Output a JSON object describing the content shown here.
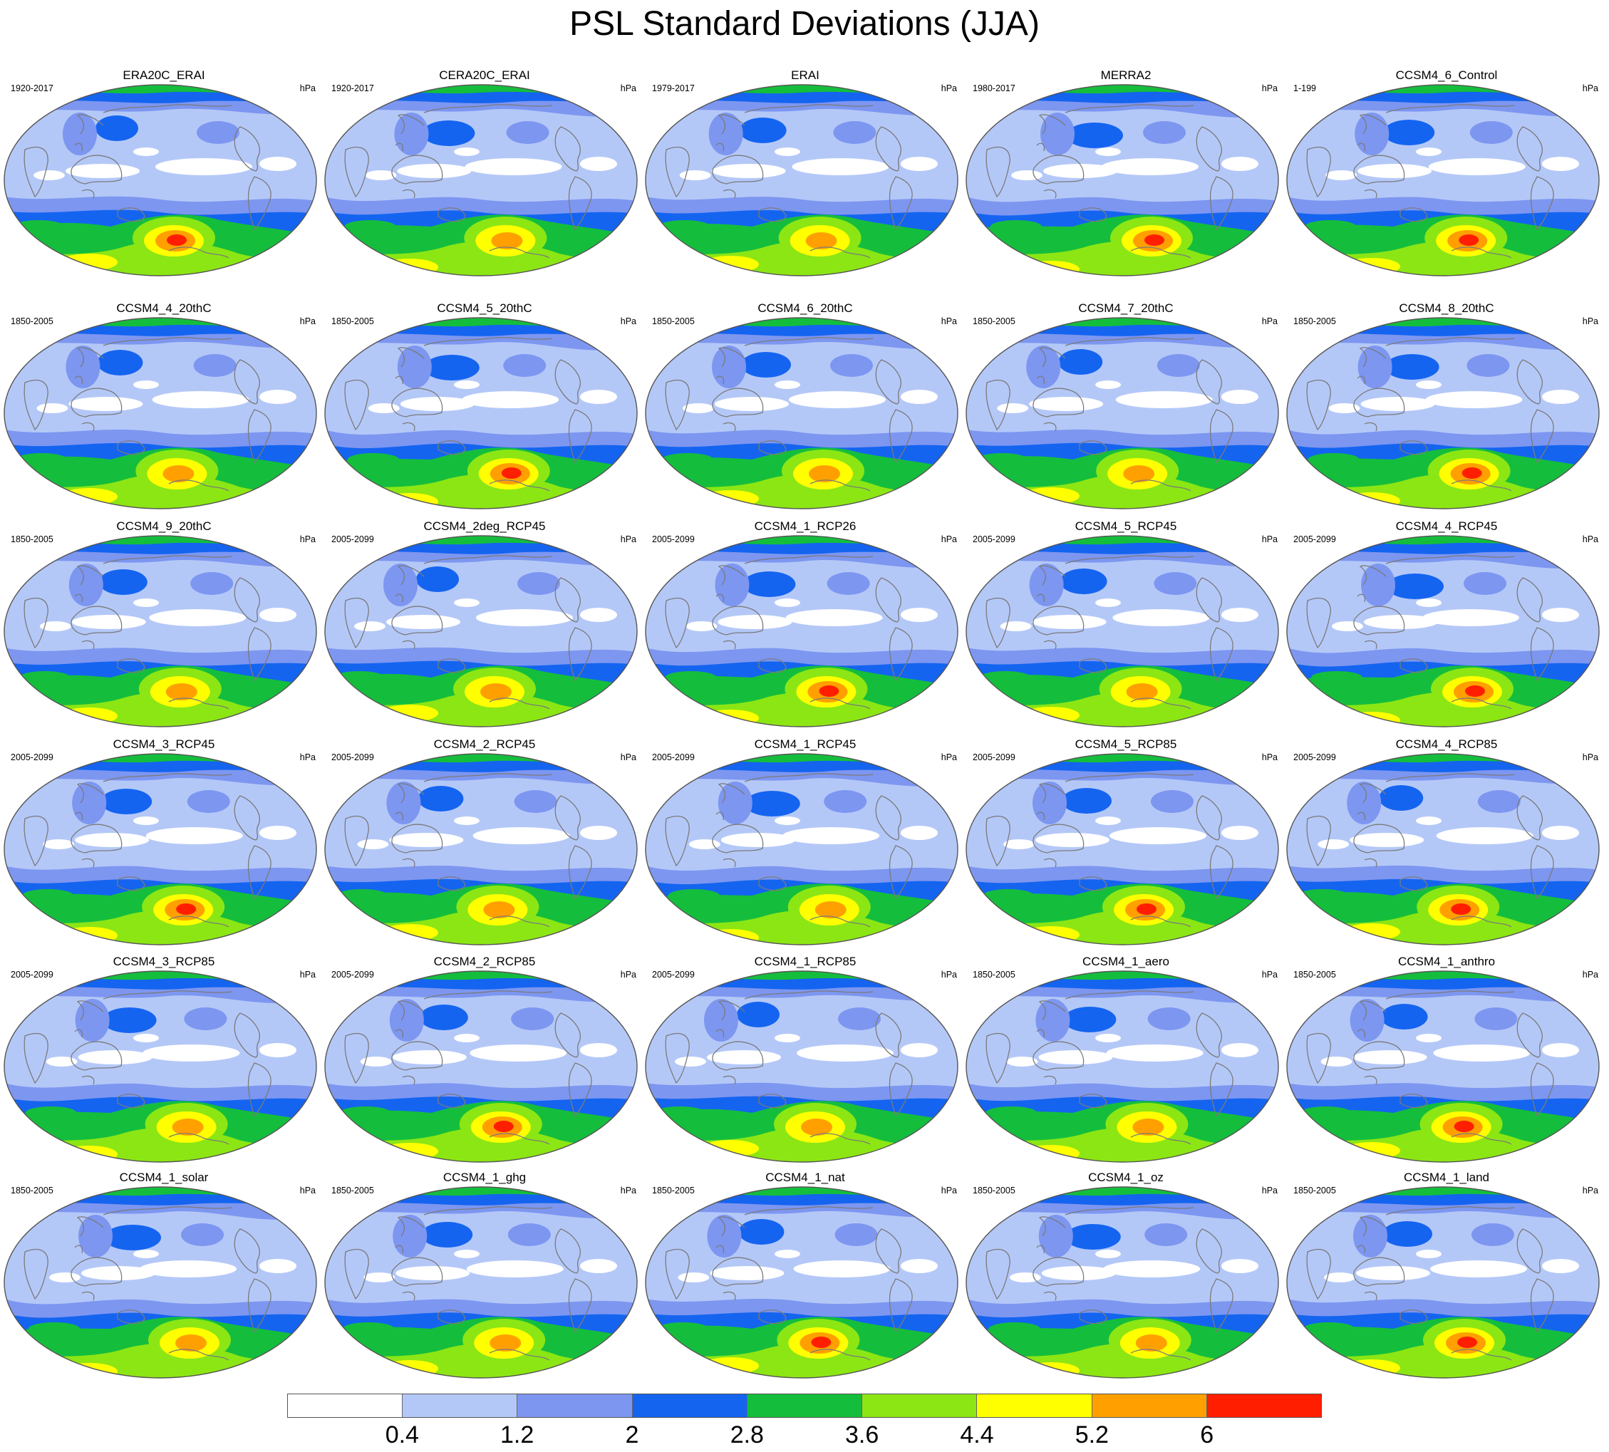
{
  "title": "PSL Standard Deviations (JJA)",
  "units": "hPa",
  "panels": [
    {
      "name": "ERA20C_ERAI",
      "years": "1920-2017"
    },
    {
      "name": "CERA20C_ERAI",
      "years": "1920-2017"
    },
    {
      "name": "ERAI",
      "years": "1979-2017"
    },
    {
      "name": "MERRA2",
      "years": "1980-2017"
    },
    {
      "name": "CCSM4_6_Control",
      "years": "1-199"
    },
    {
      "name": "CCSM4_4_20thC",
      "years": "1850-2005"
    },
    {
      "name": "CCSM4_5_20thC",
      "years": "1850-2005"
    },
    {
      "name": "CCSM4_6_20thC",
      "years": "1850-2005"
    },
    {
      "name": "CCSM4_7_20thC",
      "years": "1850-2005"
    },
    {
      "name": "CCSM4_8_20thC",
      "years": "1850-2005"
    },
    {
      "name": "CCSM4_9_20thC",
      "years": "1850-2005"
    },
    {
      "name": "CCSM4_2deg_RCP45",
      "years": "2005-2099"
    },
    {
      "name": "CCSM4_1_RCP26",
      "years": "2005-2099"
    },
    {
      "name": "CCSM4_5_RCP45",
      "years": "2005-2099"
    },
    {
      "name": "CCSM4_4_RCP45",
      "years": "2005-2099"
    },
    {
      "name": "CCSM4_3_RCP45",
      "years": "2005-2099"
    },
    {
      "name": "CCSM4_2_RCP45",
      "years": "2005-2099"
    },
    {
      "name": "CCSM4_1_RCP45",
      "years": "2005-2099"
    },
    {
      "name": "CCSM4_5_RCP85",
      "years": "2005-2099"
    },
    {
      "name": "CCSM4_4_RCP85",
      "years": "2005-2099"
    },
    {
      "name": "CCSM4_3_RCP85",
      "years": "2005-2099"
    },
    {
      "name": "CCSM4_2_RCP85",
      "years": "2005-2099"
    },
    {
      "name": "CCSM4_1_RCP85",
      "years": "2005-2099"
    },
    {
      "name": "CCSM4_1_aero",
      "years": "1850-2005"
    },
    {
      "name": "CCSM4_1_anthro",
      "years": "1850-2005"
    },
    {
      "name": "CCSM4_1_solar",
      "years": "1850-2005"
    },
    {
      "name": "CCSM4_1_ghg",
      "years": "1850-2005"
    },
    {
      "name": "CCSM4_1_nat",
      "years": "1850-2005"
    },
    {
      "name": "CCSM4_1_oz",
      "years": "1850-2005"
    },
    {
      "name": "CCSM4_1_land",
      "years": "1850-2005"
    }
  ],
  "colorbar": {
    "labels": [
      "0.4",
      "1.2",
      "2",
      "2.8",
      "3.6",
      "4.4",
      "5.2",
      "6"
    ],
    "colors": [
      "#ffffff",
      "#b4c8f8",
      "#7d96f0",
      "#1464f0",
      "#14be3c",
      "#8ce614",
      "#ffff00",
      "#ffa000",
      "#ff1e00"
    ]
  }
}
